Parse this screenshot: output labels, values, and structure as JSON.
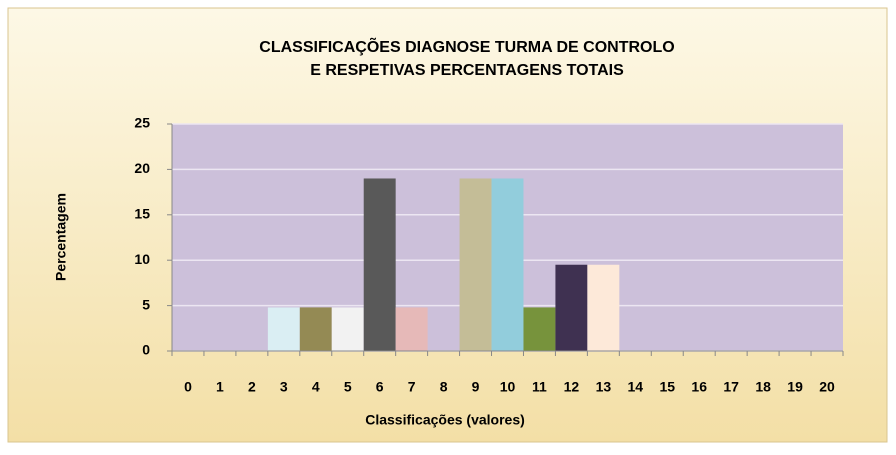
{
  "chart_data": {
    "type": "bar",
    "title": [
      "CLASSIFICAÇÕES  DIAGNOSE TURMA DE CONTROLO",
      "E RESPETIVAS PERCENTAGENS TOTAIS"
    ],
    "xlabel": "Classificações (valores)",
    "ylabel": "Percentagem",
    "categories": [
      "0",
      "1",
      "2",
      "3",
      "4",
      "5",
      "6",
      "7",
      "8",
      "9",
      "10",
      "11",
      "12",
      "13",
      "14",
      "15",
      "16",
      "17",
      "18",
      "19",
      "20"
    ],
    "values": [
      0,
      0,
      0,
      4.8,
      4.8,
      4.8,
      19,
      4.8,
      0,
      19,
      19,
      4.8,
      9.5,
      9.5,
      0,
      0,
      0,
      0,
      0,
      0,
      0
    ],
    "colors": [
      "#ccc0da",
      "#ccc0da",
      "#ccc0da",
      "#daeef3",
      "#948a54",
      "#f2f2f2",
      "#595959",
      "#e6b9b8",
      "#ccc0da",
      "#c4bd97",
      "#92cddc",
      "#77933c",
      "#3f3151",
      "#fde9d9",
      "#ccc0da",
      "#ccc0da",
      "#ccc0da",
      "#ccc0da",
      "#ccc0da",
      "#ccc0da",
      "#ccc0da"
    ],
    "ylim": [
      0,
      25
    ],
    "yticks": [
      0,
      5,
      10,
      15,
      20,
      25
    ],
    "grid": true
  }
}
